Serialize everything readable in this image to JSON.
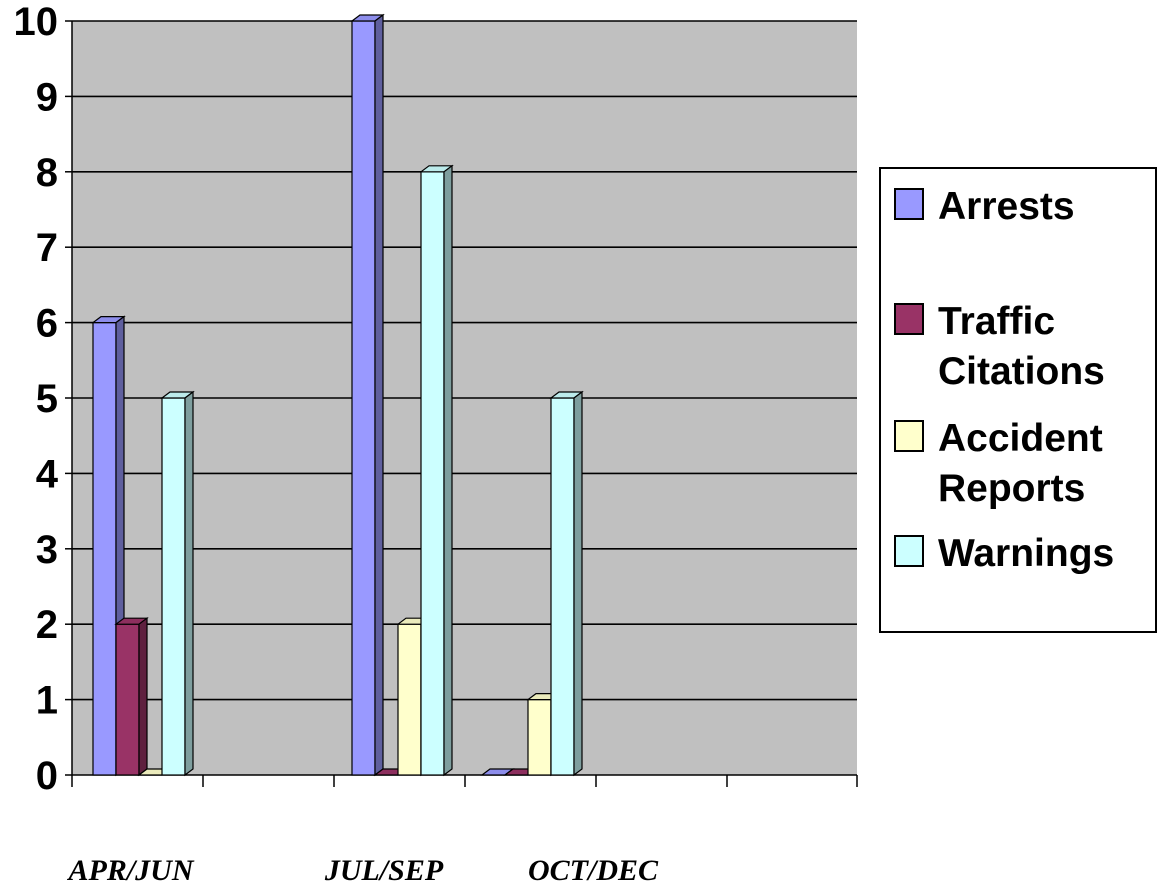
{
  "chart_data": {
    "type": "bar",
    "title": "",
    "xlabel": "",
    "ylabel": "",
    "categories": [
      "APR/JUN",
      "JUL/SEP",
      "OCT/DEC"
    ],
    "series": [
      {
        "name": "Arrests",
        "values": [
          6,
          10,
          0
        ],
        "color": "#9999ff"
      },
      {
        "name": "Traffic Citations",
        "values": [
          2,
          0,
          0
        ],
        "color": "#993366"
      },
      {
        "name": "Accident Reports",
        "values": [
          0,
          2,
          1
        ],
        "color": "#ffffcc"
      },
      {
        "name": "Warnings",
        "values": [
          5,
          8,
          5
        ],
        "color": "#ccffff"
      }
    ],
    "legend_lines": [
      [
        "Arrests"
      ],
      [
        "Traffic",
        "Citations"
      ],
      [
        "Accident",
        "Reports"
      ],
      [
        "Warnings"
      ]
    ],
    "ylim": [
      0,
      10
    ],
    "yticks": [
      "0",
      "1",
      "2",
      "3",
      "4",
      "5",
      "6",
      "7",
      "8",
      "9",
      "10"
    ],
    "grid": true,
    "legend_position": "right",
    "plot_background": "#c0c0c0"
  }
}
